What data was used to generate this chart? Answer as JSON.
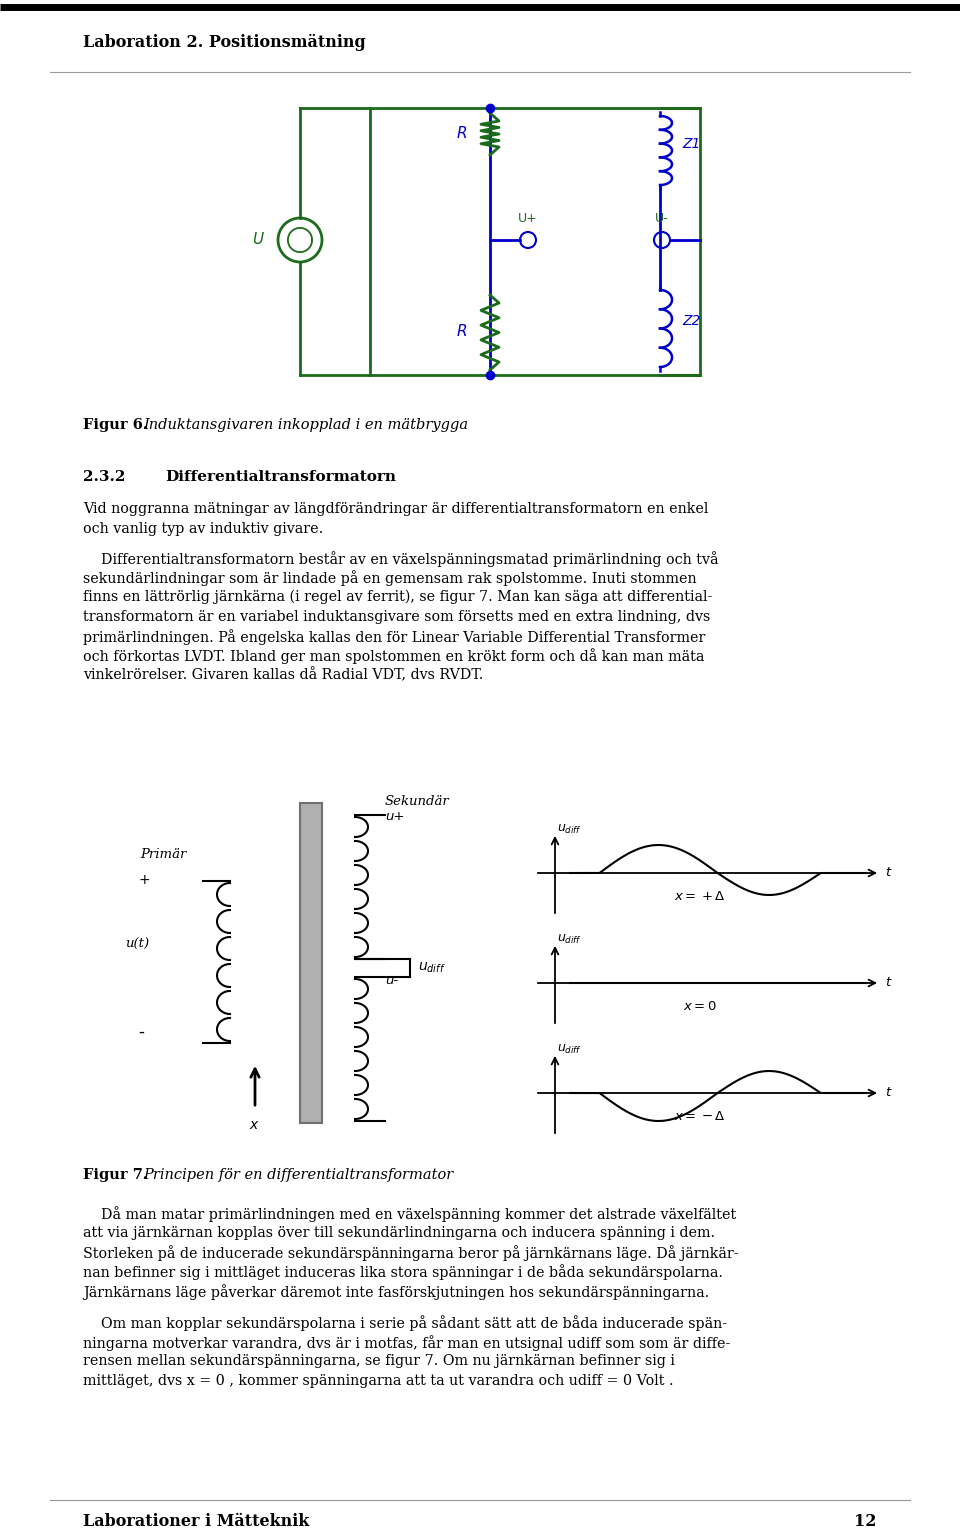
{
  "header_text": "Laboration 2. Positionsmätning",
  "footer_text": "Laborationer i Mätteknik",
  "footer_page": "12",
  "section_num": "2.3.2",
  "section_title": "Differentialtransformatorn",
  "fig6_caption_bold": "Figur 6.",
  "fig6_caption_italic": "Induktansgivaren inkopplad i en mätbrygga",
  "fig7_caption_bold": "Figur 7.",
  "fig7_caption_normal": "Principen för en differentialtransformator",
  "para1_lines": [
    "Vid noggranna mätningar av längdförändringar är differentialtransformatorn en enkel",
    "och vanlig typ av induktiv givare."
  ],
  "para2_lines": [
    "    Differentialtransformatorn består av en växelspänningsmatad primärlindning och två",
    "sekundärlindningar som är lindade på en gemensam rak spolstomme. Inuti stommen",
    "finns en lättrörlig järnkärna (i regel av ferrit), se figur 7. Man kan säga att differential-",
    "transformatorn är en variabel induktansgivare som försetts med en extra lindning, dvs",
    "primärlindningen. På engelska kallas den för Linear Variable Differential Transformer",
    "och förkortas LVDT. Ibland ger man spolstommen en krökt form och då kan man mäta",
    "vinkelrörelser. Givaren kallas då Radial VDT, dvs RVDT."
  ],
  "para3_lines": [
    "    Då man matar primärlindningen med en växelspänning kommer det alstrade växelfältet",
    "att via järnkärnan kopplas över till sekundärlindningarna och inducera spänning i dem.",
    "Storleken på de inducerade sekundärspänningarna beror på järnkärnans läge. Då järnkär-",
    "nan befinner sig i mittläget induceras lika stora spänningar i de båda sekundärspolarna.",
    "Järnkärnans läge påverkar däremot inte fasförskjutningen hos sekundärspänningarna."
  ],
  "para4_lines": [
    "    Om man kopplar sekundärspolarna i serie på sådant sätt att de båda inducerade spän-",
    "ningarna motverkar varandra, dvs är i motfas, får man en utsignal udiff som som är diffe-",
    "rensen mellan sekundärspänningarna, se figur 7. Om nu järnkärnan befinner sig i",
    "mittläget, dvs x = 0 , kommer spänningarna att ta ut varandra och udiff = 0 Volt ."
  ],
  "bg_color": "#ffffff",
  "circuit_green": "#1a6b1a",
  "circuit_blue": "#0000cc",
  "text_black": "#000000"
}
